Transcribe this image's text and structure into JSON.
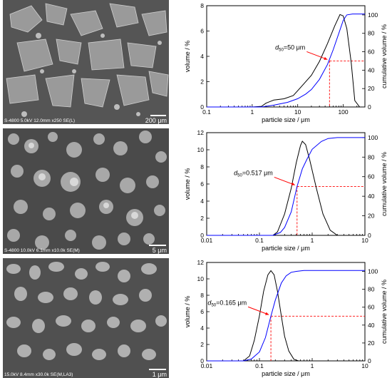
{
  "panels": [
    {
      "caption": "S-4800 5.0kV 12.0mm x250 SE(L)",
      "scale": "200 μm"
    },
    {
      "caption": "S-4800 10.0kV 6.1mm x10.0k SE(M)",
      "scale": "5 μm"
    },
    {
      "caption": "15.0kV 8.4mm x30.0k SE(M,LA3)",
      "scale": "1 μm"
    }
  ],
  "chart_data": [
    {
      "type": "line",
      "xlabel": "particle size / μm",
      "ylabel": "volume / %",
      "y2label": "cumulative volume / %",
      "xscale": "log",
      "xlim": [
        0.1,
        300
      ],
      "xticks": [
        0.1,
        1,
        10,
        100
      ],
      "ylim": [
        0,
        8
      ],
      "yticks": [
        0,
        2,
        4,
        6,
        8
      ],
      "y2lim": [
        0,
        110
      ],
      "y2ticks": [
        0,
        20,
        40,
        60,
        80,
        100
      ],
      "annotation": {
        "prefix": "d",
        "sub": "50",
        "text": "=50 μm",
        "d50": 50
      },
      "series": [
        {
          "axis": "left",
          "color": "#000000",
          "x": [
            0.1,
            1,
            1.6,
            2,
            3,
            5,
            8,
            12,
            20,
            30,
            45,
            65,
            85,
            100,
            120,
            150,
            180,
            230,
            300
          ],
          "y": [
            0,
            0,
            0.05,
            0.3,
            0.55,
            0.65,
            0.9,
            1.6,
            2.5,
            3.6,
            5.0,
            6.4,
            7.3,
            7.2,
            6.2,
            3.5,
            0.5,
            0,
            0
          ]
        },
        {
          "axis": "right",
          "color": "#0000ff",
          "x": [
            0.1,
            1.6,
            3,
            6,
            10,
            15,
            20,
            30,
            45,
            60,
            80,
            100,
            120,
            160,
            200,
            300
          ],
          "y": [
            0,
            0,
            2,
            5,
            9,
            14,
            19,
            30,
            46,
            62,
            80,
            94,
            100,
            101,
            101,
            101
          ]
        }
      ]
    },
    {
      "type": "line",
      "xlabel": "particle size / μm",
      "ylabel": "volume / %",
      "y2label": "cumulative volume / %",
      "xscale": "log",
      "xlim": [
        0.01,
        10
      ],
      "xticks": [
        0.01,
        0.1,
        1,
        10
      ],
      "ylim": [
        0,
        12
      ],
      "yticks": [
        0,
        2,
        4,
        6,
        8,
        10,
        12
      ],
      "y2lim": [
        0,
        105
      ],
      "y2ticks": [
        0,
        20,
        40,
        60,
        80,
        100
      ],
      "annotation": {
        "prefix": "d",
        "sub": "50",
        "text": "=0.517 μm",
        "d50": 0.517
      },
      "series": [
        {
          "axis": "left",
          "color": "#000000",
          "x": [
            0.01,
            0.18,
            0.22,
            0.3,
            0.4,
            0.5,
            0.6,
            0.65,
            0.75,
            0.9,
            1.2,
            1.6,
            2.2,
            3,
            10
          ],
          "y": [
            0,
            0,
            0.4,
            2.5,
            5.5,
            8.5,
            10.5,
            11,
            10.6,
            8.8,
            5.5,
            2.5,
            0.6,
            0,
            0
          ]
        },
        {
          "axis": "right",
          "color": "#0000ff",
          "x": [
            0.01,
            0.18,
            0.25,
            0.3,
            0.4,
            0.517,
            0.65,
            0.8,
            1.0,
            1.5,
            2.0,
            3.0,
            5.0,
            10
          ],
          "y": [
            0,
            0,
            3,
            8,
            24,
            50,
            68,
            78,
            88,
            96,
            99,
            100,
            100,
            100
          ]
        }
      ]
    },
    {
      "type": "line",
      "xlabel": "particle size / μm",
      "ylabel": "volume / %",
      "y2label": "cumulative volume / %",
      "xscale": "log",
      "xlim": [
        0.01,
        10
      ],
      "xticks": [
        0.01,
        0.1,
        1,
        10
      ],
      "ylim": [
        0,
        12
      ],
      "yticks": [
        0,
        2,
        4,
        6,
        8,
        10,
        12
      ],
      "y2lim": [
        0,
        110
      ],
      "y2ticks": [
        0,
        20,
        40,
        60,
        80,
        100
      ],
      "annotation": {
        "prefix": "d",
        "sub": "50",
        "text": "=0.165 μm",
        "d50": 0.165
      },
      "series": [
        {
          "axis": "left",
          "color": "#000000",
          "x": [
            0.01,
            0.05,
            0.065,
            0.08,
            0.1,
            0.12,
            0.145,
            0.165,
            0.19,
            0.22,
            0.26,
            0.3,
            0.36,
            0.45,
            0.55,
            10
          ],
          "y": [
            0,
            0,
            0.6,
            2.5,
            5.5,
            8.5,
            10.5,
            11,
            10.5,
            8.5,
            5.5,
            3,
            1.2,
            0.2,
            0,
            0
          ]
        },
        {
          "axis": "right",
          "color": "#0000ff",
          "x": [
            0.01,
            0.05,
            0.07,
            0.1,
            0.13,
            0.165,
            0.2,
            0.26,
            0.32,
            0.4,
            0.5,
            0.7,
            1.0,
            10
          ],
          "y": [
            0,
            0,
            2,
            10,
            26,
            50,
            68,
            87,
            95,
            99,
            100,
            101,
            101,
            101
          ]
        }
      ]
    }
  ]
}
